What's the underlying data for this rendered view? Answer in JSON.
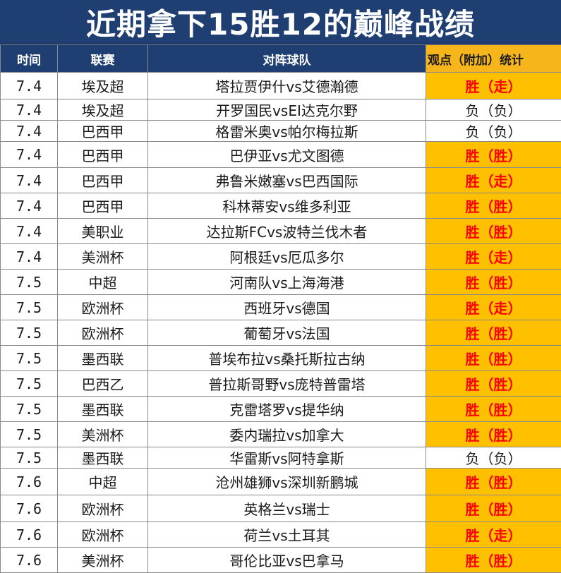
{
  "title": "近期拿下15胜12的巅峰战绩",
  "headers": {
    "date": "时间",
    "league": "联赛",
    "match": "对阵球队",
    "result": "观点（附加）统计"
  },
  "colors": {
    "header_bg": "#1f3f73",
    "result_header_bg": "#f7b51c",
    "win_bg": "#ffc000",
    "win_text": "#ff0000"
  },
  "rows": [
    {
      "date": "7.4",
      "league": "埃及超",
      "match": "塔拉贾伊什vs艾德瀚德",
      "result": "胜（走）",
      "status": "win",
      "height": 38
    },
    {
      "date": "7.4",
      "league": "埃及超",
      "match": "开罗国民vsEI达克尔野",
      "result": "负（负）",
      "status": "loss",
      "height": 28
    },
    {
      "date": "7.4",
      "league": "巴西甲",
      "match": "格雷米奥vs帕尔梅拉斯",
      "result": "负（负）",
      "status": "loss",
      "height": 29
    },
    {
      "date": "7.4",
      "league": "巴西甲",
      "match": "巴伊亚vs尤文图德",
      "result": "胜（胜）",
      "status": "win",
      "height": 37
    },
    {
      "date": "7.4",
      "league": "巴西甲",
      "match": "弗鲁米嫩塞vs巴西国际",
      "result": "胜（走）",
      "status": "win",
      "height": 36
    },
    {
      "date": "7.4",
      "league": "巴西甲",
      "match": "科林蒂安vs维多利亚",
      "result": "胜（胜）",
      "status": "win",
      "height": 36
    },
    {
      "date": "7.4",
      "league": "美职业",
      "match": "达拉斯FCvs波特兰伐木者",
      "result": "胜（胜）",
      "status": "win",
      "height": 36
    },
    {
      "date": "7.4",
      "league": "美洲杯",
      "match": "阿根廷vs厄瓜多尔",
      "result": "胜（走）",
      "status": "win",
      "height": 36
    },
    {
      "date": "7.5",
      "league": "中超",
      "match": "河南队vs上海海港",
      "result": "胜（胜）",
      "status": "win",
      "height": 36
    },
    {
      "date": "7.5",
      "league": "欧洲杯",
      "match": "西班牙vs德国",
      "result": "胜（走）",
      "status": "win",
      "height": 36
    },
    {
      "date": "7.5",
      "league": "欧洲杯",
      "match": "葡萄牙vs法国",
      "result": "胜（胜）",
      "status": "win",
      "height": 36
    },
    {
      "date": "7.5",
      "league": "墨西联",
      "match": "普埃布拉vs桑托斯拉古纳",
      "result": "胜（胜）",
      "status": "win",
      "height": 36
    },
    {
      "date": "7.5",
      "league": "巴西乙",
      "match": "普拉斯哥野vs庞特普雷塔",
      "result": "胜（胜）",
      "status": "win",
      "height": 36
    },
    {
      "date": "7.5",
      "league": "墨西联",
      "match": "克雷塔罗vs提华纳",
      "result": "胜（胜）",
      "status": "win",
      "height": 36
    },
    {
      "date": "7.5",
      "league": "美洲杯",
      "match": "委内瑞拉vs加拿大",
      "result": "胜（胜）",
      "status": "win",
      "height": 36
    },
    {
      "date": "7.5",
      "league": "墨西联",
      "match": "华雷斯vs阿特拿斯",
      "result": "负（负）",
      "status": "loss",
      "height": 28
    },
    {
      "date": "7.6",
      "league": "中超",
      "match": "沧州雄狮vs深圳新鹏城",
      "result": "胜（胜）",
      "status": "win",
      "height": 38
    },
    {
      "date": "7.6",
      "league": "欧洲杯",
      "match": "英格兰vs瑞士",
      "result": "胜（胜）",
      "status": "win",
      "height": 38
    },
    {
      "date": "7.6",
      "league": "欧洲杯",
      "match": "荷兰vs土耳其",
      "result": "胜（走）",
      "status": "win",
      "height": 36
    },
    {
      "date": "7.6",
      "league": "美洲杯",
      "match": "哥伦比亚vs巴拿马",
      "result": "胜（胜）",
      "status": "win",
      "height": 36
    }
  ]
}
